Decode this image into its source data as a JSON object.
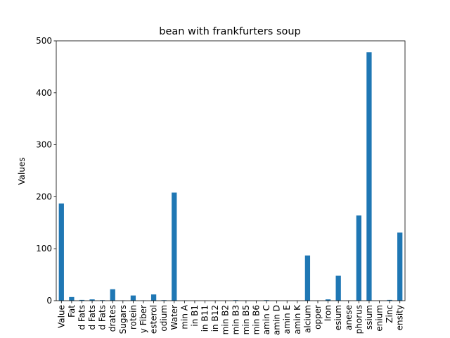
{
  "chart_data": {
    "type": "bar",
    "title": "bean with frankfurters soup",
    "xlabel": "",
    "ylabel": "Values",
    "ylim": [
      0,
      500
    ],
    "yticks": [
      0,
      100,
      200,
      300,
      400,
      500
    ],
    "grid": false,
    "legend": "none",
    "bar_color": "#1f77b4",
    "categories": [
      "Value",
      "Fat",
      "d Fats",
      "d Fats",
      "d Fats",
      "drates",
      "Sugars",
      "rotein",
      "y Fiber",
      "esterol",
      "odium",
      "Water",
      "min A",
      "in B1",
      "in B11",
      "in B12",
      "min B2",
      "min B3",
      "min B5",
      "min B6",
      "amin C",
      "amin D",
      "amin E",
      "amin K",
      "alcium",
      "opper",
      "Iron",
      "esium",
      "anese",
      "phorus",
      "ssium",
      "enium",
      "Zinc",
      "ensity"
    ],
    "values": [
      187,
      7,
      1.5,
      2.5,
      1,
      22,
      0.5,
      10,
      0.5,
      12,
      1,
      208,
      0.3,
      0.1,
      0.1,
      0.1,
      0.1,
      1,
      0.2,
      0.1,
      1,
      0,
      0,
      0.1,
      87,
      0.2,
      2.5,
      48,
      0.3,
      164,
      478,
      0.1,
      1.5,
      131
    ]
  }
}
